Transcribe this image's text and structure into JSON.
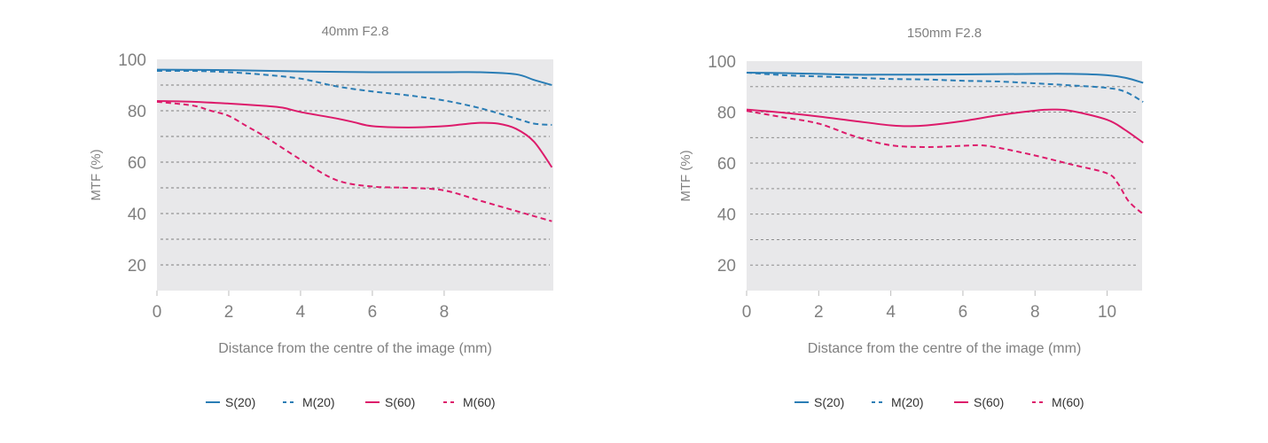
{
  "colors": {
    "blue": "#2a7db5",
    "magenta": "#dd1b6b",
    "plot_bg": "#e8e8ea",
    "grid": "#808080",
    "text": "#808080"
  },
  "chart_data": [
    {
      "type": "line",
      "title": "40mm F2.8",
      "xlabel": "Distance from the centre of the image (mm)",
      "ylabel": "MTF (%)",
      "xlim": [
        0,
        11
      ],
      "ylim": [
        10,
        100
      ],
      "xticks": [
        0,
        2,
        4,
        6,
        8
      ],
      "yticks": [
        20,
        40,
        60,
        80,
        100
      ],
      "grid_lines": [
        20,
        30,
        40,
        50,
        60,
        70,
        80,
        90
      ],
      "legend": "bottom",
      "series": [
        {
          "name": "S(20)",
          "color": "blue",
          "dashed": false,
          "x": [
            0,
            2,
            4,
            6,
            8,
            9,
            10,
            10.5,
            11
          ],
          "y": [
            96,
            95.8,
            95.3,
            95,
            95,
            95,
            94.2,
            92,
            90
          ]
        },
        {
          "name": "M(20)",
          "color": "blue",
          "dashed": true,
          "x": [
            0,
            1,
            2,
            3,
            4,
            5,
            6,
            7,
            8,
            9,
            10,
            10.5,
            11
          ],
          "y": [
            95.5,
            95.5,
            95,
            94,
            92.5,
            89.5,
            87.5,
            86,
            84,
            81,
            77,
            75,
            74.5
          ]
        },
        {
          "name": "S(60)",
          "color": "magenta",
          "dashed": false,
          "x": [
            0,
            1,
            2,
            3,
            3.5,
            4,
            5,
            5.5,
            6,
            7,
            8,
            8.5,
            9,
            9.5,
            10,
            10.5,
            11
          ],
          "y": [
            83.8,
            83.5,
            82.8,
            81.9,
            81.2,
            79.5,
            77,
            75.5,
            74,
            73.5,
            74,
            74.7,
            75.3,
            75,
            73,
            68,
            58
          ]
        },
        {
          "name": "M(60)",
          "color": "magenta",
          "dashed": true,
          "x": [
            0,
            1,
            1.5,
            2,
            2.5,
            3,
            4,
            5,
            6,
            7,
            8,
            9,
            10,
            10.5,
            11
          ],
          "y": [
            83.5,
            82,
            80,
            78,
            74,
            70,
            61,
            53,
            50.5,
            50,
            49,
            45,
            41,
            39,
            37
          ]
        }
      ]
    },
    {
      "type": "line",
      "title": "150mm F2.8",
      "xlabel": "Distance from the centre of the image (mm)",
      "ylabel": "MTF (%)",
      "xlim": [
        0,
        11
      ],
      "ylim": [
        10,
        100
      ],
      "xticks": [
        0,
        2,
        4,
        6,
        8,
        10
      ],
      "yticks": [
        20,
        40,
        60,
        80,
        100
      ],
      "grid_lines": [
        20,
        30,
        40,
        50,
        60,
        70,
        80,
        90
      ],
      "legend": "bottom",
      "series": [
        {
          "name": "S(20)",
          "color": "blue",
          "dashed": false,
          "x": [
            0,
            1,
            2,
            3,
            4,
            6,
            8,
            9,
            10,
            10.5,
            11
          ],
          "y": [
            95.5,
            95.3,
            95,
            94.7,
            94.7,
            94.8,
            95,
            95,
            94.5,
            93.5,
            91.5
          ]
        },
        {
          "name": "M(20)",
          "color": "blue",
          "dashed": true,
          "x": [
            0,
            1,
            2,
            3,
            4,
            5,
            6,
            7,
            8,
            9,
            10,
            10.5,
            11
          ],
          "y": [
            95.5,
            94.5,
            94,
            93.5,
            93,
            92.8,
            92.3,
            92,
            91.3,
            90.5,
            89.5,
            88,
            84
          ]
        },
        {
          "name": "S(60)",
          "color": "magenta",
          "dashed": false,
          "x": [
            0,
            1,
            2,
            3,
            4,
            4.5,
            5,
            6,
            7,
            8,
            8.5,
            9,
            10,
            10.5,
            11
          ],
          "y": [
            81,
            79.8,
            78.3,
            76.5,
            74.8,
            74.5,
            74.8,
            76.5,
            78.8,
            80.6,
            81,
            80.5,
            77,
            73,
            68
          ]
        },
        {
          "name": "M(60)",
          "color": "magenta",
          "dashed": true,
          "x": [
            0,
            1,
            2,
            3,
            4,
            5,
            6,
            6.5,
            7,
            8,
            9,
            10,
            10.3,
            10.6,
            11
          ],
          "y": [
            80.5,
            78,
            75.5,
            70.5,
            67,
            66.3,
            66.8,
            67,
            66,
            63,
            59.5,
            56,
            52,
            45,
            40
          ]
        }
      ]
    }
  ]
}
